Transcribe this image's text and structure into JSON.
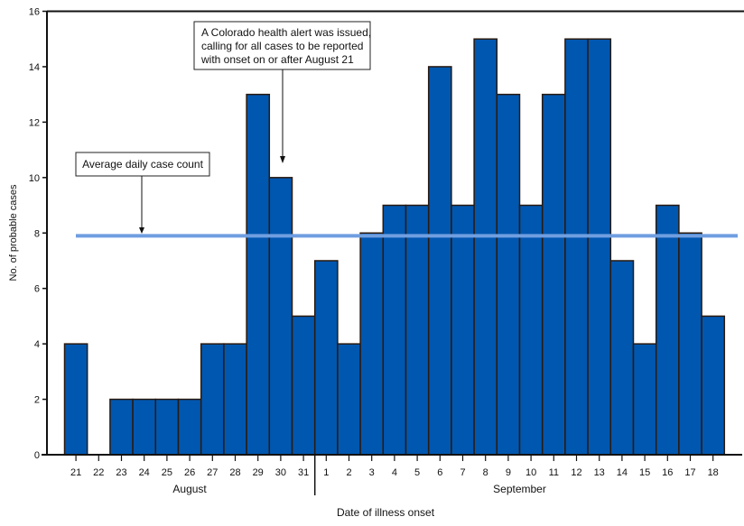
{
  "chart_data": {
    "type": "bar",
    "xlabel": "Date of illness onset",
    "ylabel": "No. of probable cases",
    "ylim": [
      0,
      16
    ],
    "yticks": [
      0,
      2,
      4,
      6,
      8,
      10,
      12,
      14,
      16
    ],
    "grid": false,
    "categories": [
      "21",
      "22",
      "23",
      "24",
      "25",
      "26",
      "27",
      "28",
      "29",
      "30",
      "31",
      "1",
      "2",
      "3",
      "4",
      "5",
      "6",
      "7",
      "8",
      "9",
      "10",
      "11",
      "12",
      "13",
      "14",
      "15",
      "16",
      "17",
      "18"
    ],
    "values": [
      4,
      0,
      2,
      2,
      2,
      2,
      4,
      4,
      13,
      10,
      5,
      7,
      4,
      8,
      9,
      9,
      14,
      9,
      15,
      13,
      9,
      13,
      15,
      15,
      7,
      4,
      9,
      8,
      5
    ],
    "months": [
      {
        "label": "August",
        "from_index": 0,
        "to_index": 10
      },
      {
        "label": "September",
        "from_index": 11,
        "to_index": 28
      }
    ],
    "average_line": {
      "value": 7.9,
      "label": "Average daily case count"
    },
    "annotation": {
      "lines": [
        "A Colorado health alert was issued,",
        "calling for all cases to be reported",
        "with onset on or after August 21"
      ],
      "points_to_index": 9
    },
    "colors": {
      "bar": "#0057b0",
      "bar_edge": "#2a1a10",
      "average_line": "#6f9ee0"
    }
  }
}
